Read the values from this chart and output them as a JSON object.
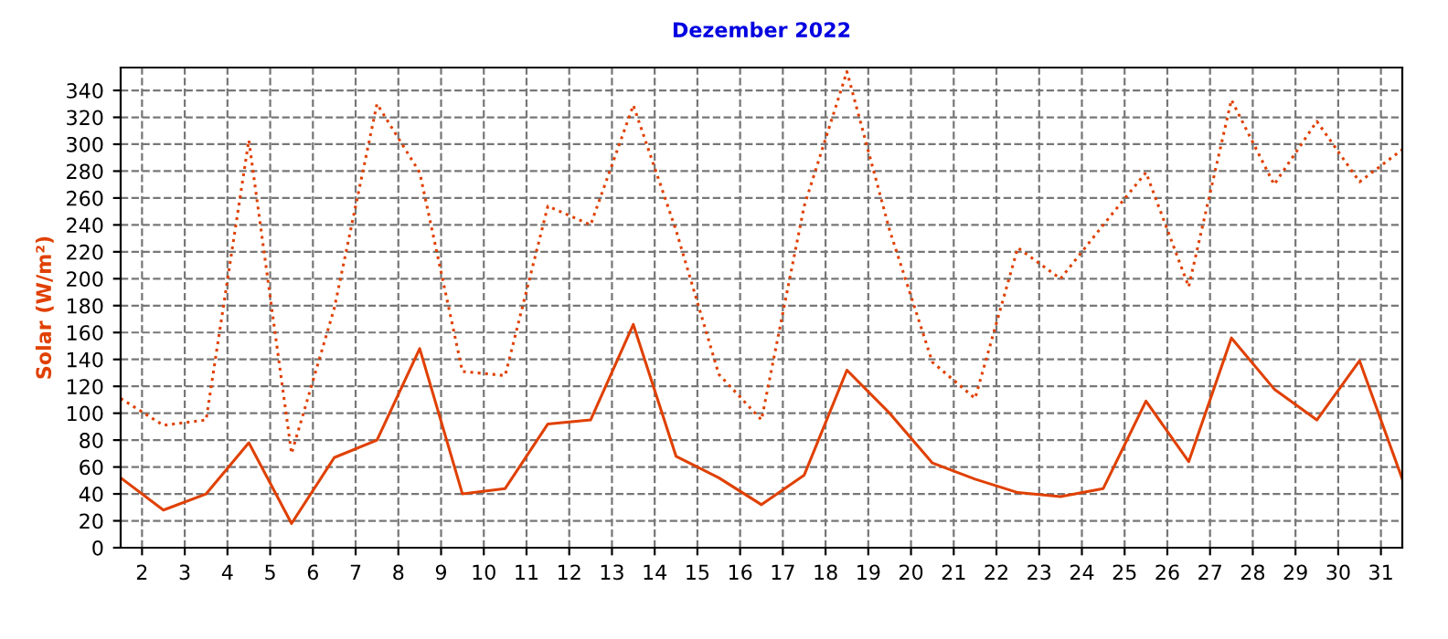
{
  "chart_data": {
    "type": "line",
    "title": "Dezember 2022",
    "ylabel": "Solar (W/m²)",
    "x": [
      1,
      2,
      3,
      4,
      5,
      6,
      7,
      8,
      9,
      10,
      11,
      12,
      13,
      14,
      15,
      16,
      17,
      18,
      19,
      20,
      21,
      22,
      23,
      24,
      25,
      26,
      27,
      28,
      29,
      30,
      31
    ],
    "series": [
      {
        "color": "#e04000",
        "line_style": "dotted",
        "values": [
          111,
          91,
          95,
          303,
          70,
          178,
          330,
          279,
          131,
          128,
          254,
          240,
          329,
          236,
          129,
          95,
          254,
          354,
          236,
          138,
          111,
          223,
          200,
          240,
          279,
          194,
          333,
          270,
          317,
          272,
          296
        ]
      },
      {
        "color": "#e04000",
        "line_style": "solid",
        "values": [
          52,
          28,
          40,
          78,
          18,
          67,
          80,
          148,
          40,
          44,
          92,
          95,
          166,
          68,
          52,
          32,
          54,
          132,
          100,
          63,
          51,
          41,
          38,
          44,
          109,
          64,
          156,
          118,
          95,
          139,
          51
        ]
      }
    ],
    "xlim": [
      1,
      31
    ],
    "ylim": [
      0,
      357
    ],
    "xticks": [
      {
        "value": 1.5,
        "label": "2"
      },
      {
        "value": 2.5,
        "label": "3"
      },
      {
        "value": 3.5,
        "label": "4"
      },
      {
        "value": 4.5,
        "label": "5"
      },
      {
        "value": 5.5,
        "label": "6"
      },
      {
        "value": 6.5,
        "label": "7"
      },
      {
        "value": 7.5,
        "label": "8"
      },
      {
        "value": 8.5,
        "label": "9"
      },
      {
        "value": 9.5,
        "label": "10"
      },
      {
        "value": 10.5,
        "label": "11"
      },
      {
        "value": 11.5,
        "label": "12"
      },
      {
        "value": 12.5,
        "label": "13"
      },
      {
        "value": 13.5,
        "label": "14"
      },
      {
        "value": 14.5,
        "label": "15"
      },
      {
        "value": 15.5,
        "label": "16"
      },
      {
        "value": 16.5,
        "label": "17"
      },
      {
        "value": 17.5,
        "label": "18"
      },
      {
        "value": 18.5,
        "label": "19"
      },
      {
        "value": 19.5,
        "label": "20"
      },
      {
        "value": 20.5,
        "label": "21"
      },
      {
        "value": 21.5,
        "label": "22"
      },
      {
        "value": 22.5,
        "label": "23"
      },
      {
        "value": 23.5,
        "label": "24"
      },
      {
        "value": 24.5,
        "label": "25"
      },
      {
        "value": 25.5,
        "label": "26"
      },
      {
        "value": 26.5,
        "label": "27"
      },
      {
        "value": 27.5,
        "label": "28"
      },
      {
        "value": 28.5,
        "label": "29"
      },
      {
        "value": 29.5,
        "label": "30"
      },
      {
        "value": 30.5,
        "label": "31"
      }
    ],
    "yticks": [
      0,
      20,
      40,
      60,
      80,
      100,
      120,
      140,
      160,
      180,
      200,
      220,
      240,
      260,
      280,
      300,
      320,
      340
    ],
    "grid": true,
    "marker": "none"
  }
}
